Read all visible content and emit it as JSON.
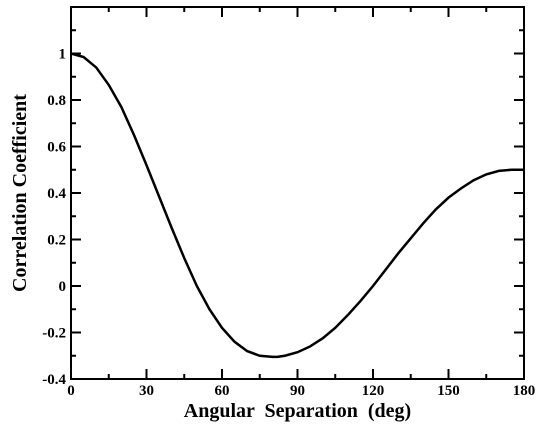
{
  "chart_data": {
    "type": "line",
    "title": "",
    "xlabel": "Angular  Separation  (deg)",
    "ylabel": "Correlation Coefficient",
    "xlim": [
      0,
      180
    ],
    "ylim": [
      -0.4,
      1.2
    ],
    "xticks": [
      0,
      30,
      60,
      90,
      120,
      150,
      180
    ],
    "xtick_labels": [
      "0",
      "30",
      "60",
      "90",
      "120",
      "150",
      "180"
    ],
    "yticks": [
      -0.4,
      -0.2,
      0,
      0.2,
      0.4,
      0.6,
      0.8,
      1
    ],
    "ytick_labels": [
      "-0.4",
      "-0.2",
      "0",
      "0.2",
      "0.4",
      "0.6",
      "0.8",
      "1"
    ],
    "grid": false,
    "legend": "none",
    "line_color": "#000000",
    "series": [
      {
        "x": [
          0,
          5,
          10,
          15,
          20,
          25,
          30,
          35,
          40,
          45,
          50,
          55,
          60,
          65,
          70,
          75,
          80,
          82,
          85,
          90,
          95,
          100,
          105,
          110,
          115,
          120,
          125,
          130,
          135,
          140,
          145,
          150,
          155,
          160,
          165,
          170,
          175,
          180
        ],
        "y": [
          1.0,
          0.985,
          0.94,
          0.865,
          0.77,
          0.65,
          0.52,
          0.385,
          0.25,
          0.12,
          0.0,
          -0.1,
          -0.18,
          -0.24,
          -0.28,
          -0.3,
          -0.305,
          -0.305,
          -0.3,
          -0.285,
          -0.26,
          -0.225,
          -0.18,
          -0.125,
          -0.065,
          0.0,
          0.07,
          0.14,
          0.205,
          0.27,
          0.33,
          0.38,
          0.42,
          0.455,
          0.48,
          0.495,
          0.5,
          0.5
        ]
      }
    ]
  }
}
